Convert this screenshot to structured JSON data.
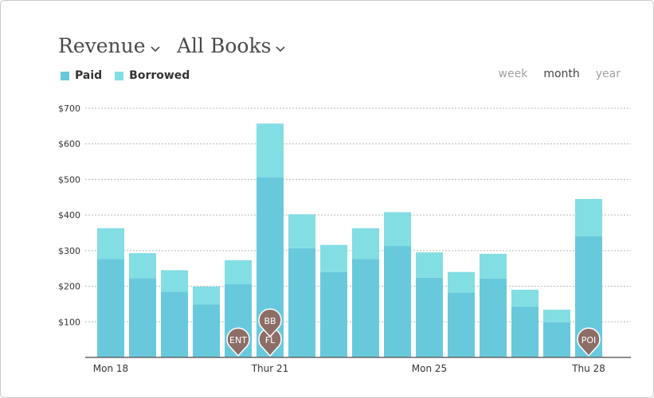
{
  "header": {
    "metric_selector": "Revenue",
    "scope_selector": "All Books"
  },
  "legend": [
    {
      "label": "Paid",
      "color": "#69c9dc"
    },
    {
      "label": "Borrowed",
      "color": "#82dee3"
    }
  ],
  "periods": [
    {
      "label": "week",
      "active": false
    },
    {
      "label": "month",
      "active": true
    },
    {
      "label": "year",
      "active": false
    }
  ],
  "chart_data": {
    "type": "bar",
    "stacked": true,
    "categories": [
      "Mon 18",
      "",
      "",
      "",
      "",
      "Thur 21",
      "",
      "",
      "",
      "",
      "Mon 25",
      "",
      "",
      "",
      "",
      "Thu 28"
    ],
    "x_tick_labels": [
      "Mon 18",
      "Thur 21",
      "Mon 25",
      "Thu 28"
    ],
    "series": [
      {
        "name": "Paid",
        "values": [
          277,
          223,
          185,
          149,
          206,
          507,
          307,
          240,
          277,
          313,
          224,
          182,
          222,
          142,
          99,
          340
        ]
      },
      {
        "name": "Borrowed",
        "values": [
          86,
          70,
          60,
          50,
          67,
          150,
          95,
          76,
          86,
          95,
          71,
          58,
          69,
          48,
          35,
          105
        ]
      }
    ],
    "ylim": [
      0,
      700
    ],
    "yticks": [
      100,
      200,
      300,
      400,
      500,
      600,
      700
    ],
    "ytick_labels": [
      "$100",
      "$200",
      "$300",
      "$400",
      "$500",
      "$600",
      "$700"
    ],
    "grid": true,
    "markers": [
      {
        "label": "ENT",
        "bar_index": 4,
        "stack": 0
      },
      {
        "label": "FL",
        "bar_index": 5,
        "stack": 0
      },
      {
        "label": "BB",
        "bar_index": 5,
        "stack": 1
      },
      {
        "label": "POI",
        "bar_index": 15,
        "stack": 0
      }
    ],
    "marker_color": "#8c6e67"
  }
}
